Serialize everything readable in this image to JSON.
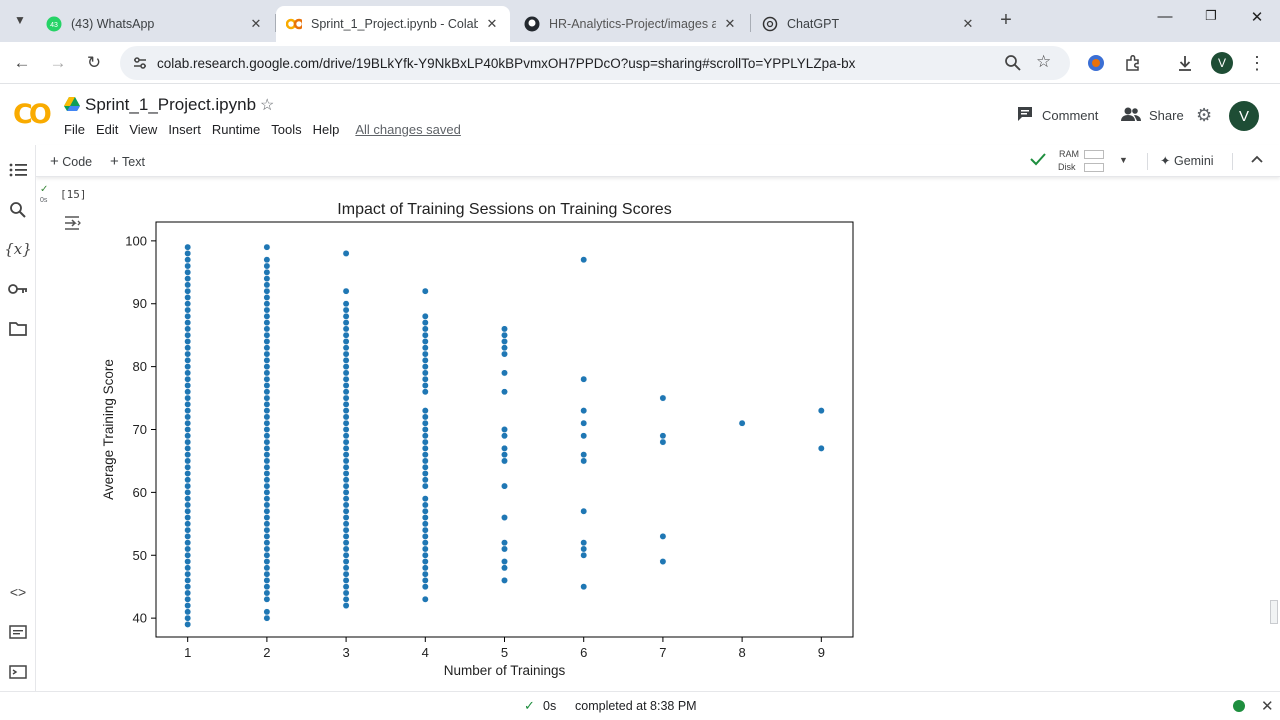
{
  "browser": {
    "tabs": [
      {
        "title": "(43) WhatsApp",
        "icon": "whatsapp-icon",
        "badge": "43",
        "active": false
      },
      {
        "title": "Sprint_1_Project.ipynb - Colab",
        "icon": "colab-icon",
        "active": true
      },
      {
        "title": "HR-Analytics-Project/images at",
        "icon": "github-icon",
        "active": false
      },
      {
        "title": "ChatGPT",
        "icon": "chatgpt-icon",
        "active": false
      }
    ],
    "url": "colab.research.google.com/drive/19BLkYfk-Y9NkBxLP40kBPvmxOH7PPDcO?usp=sharing#scrollTo=YPPLYLZpa-bx",
    "profile_initial": "V"
  },
  "colab": {
    "logo": "CO",
    "notebook_title": "Sprint_1_Project.ipynb",
    "menu": [
      "File",
      "Edit",
      "View",
      "Insert",
      "Runtime",
      "Tools",
      "Help"
    ],
    "save_status": "All changes saved",
    "comment_label": "Comment",
    "share_label": "Share",
    "user_initial": "V",
    "add_code": "Code",
    "add_text": "Text",
    "ram_label": "RAM",
    "disk_label": "Disk",
    "gemini_label": "Gemini"
  },
  "cell": {
    "exec_time": "0s",
    "exec_count": "[15]"
  },
  "status": {
    "time": "0s",
    "message": "completed at 8:38 PM"
  },
  "colors": {
    "marker": "#1f77b4",
    "status_dot": "#1e8e3e",
    "check": "#1e8e3e"
  },
  "chart_data": {
    "type": "scatter",
    "title": "Impact of Training Sessions on Training Scores",
    "xlabel": "Number of Trainings",
    "ylabel": "Average Training Score",
    "xlim": [
      0.6,
      9.4
    ],
    "ylim": [
      37,
      103
    ],
    "xticks": [
      1,
      2,
      3,
      4,
      5,
      6,
      7,
      8,
      9
    ],
    "yticks": [
      40,
      50,
      60,
      70,
      80,
      90,
      100
    ],
    "grid": false,
    "points_by_x": [
      {
        "x": 1,
        "y": [
          39,
          40,
          41,
          42,
          43,
          44,
          45,
          46,
          47,
          48,
          49,
          50,
          51,
          52,
          53,
          54,
          55,
          56,
          57,
          58,
          59,
          60,
          61,
          62,
          63,
          64,
          65,
          66,
          67,
          68,
          69,
          70,
          71,
          72,
          73,
          74,
          75,
          76,
          77,
          78,
          79,
          80,
          81,
          82,
          83,
          84,
          85,
          86,
          87,
          88,
          89,
          90,
          91,
          92,
          93,
          94,
          95,
          96,
          97,
          98,
          99
        ]
      },
      {
        "x": 2,
        "y": [
          40,
          41,
          43,
          44,
          45,
          46,
          47,
          48,
          49,
          50,
          51,
          52,
          53,
          54,
          55,
          56,
          57,
          58,
          59,
          60,
          61,
          62,
          63,
          64,
          65,
          66,
          67,
          68,
          69,
          70,
          71,
          72,
          73,
          74,
          75,
          76,
          77,
          78,
          79,
          80,
          81,
          82,
          83,
          84,
          85,
          86,
          87,
          88,
          89,
          90,
          91,
          92,
          93,
          94,
          95,
          96,
          97,
          99
        ]
      },
      {
        "x": 3,
        "y": [
          42,
          43,
          44,
          45,
          46,
          47,
          48,
          49,
          50,
          51,
          52,
          53,
          54,
          55,
          56,
          57,
          58,
          59,
          60,
          61,
          62,
          63,
          64,
          65,
          66,
          67,
          68,
          69,
          70,
          71,
          72,
          73,
          74,
          75,
          76,
          77,
          78,
          79,
          80,
          81,
          82,
          83,
          84,
          85,
          86,
          87,
          88,
          89,
          90,
          92,
          98
        ]
      },
      {
        "x": 4,
        "y": [
          43,
          45,
          46,
          47,
          48,
          49,
          50,
          51,
          52,
          53,
          54,
          55,
          56,
          57,
          58,
          59,
          61,
          62,
          63,
          64,
          65,
          66,
          67,
          68,
          69,
          70,
          71,
          72,
          73,
          76,
          77,
          78,
          79,
          80,
          81,
          82,
          83,
          84,
          85,
          86,
          87,
          88,
          92
        ]
      },
      {
        "x": 5,
        "y": [
          46,
          48,
          49,
          51,
          52,
          56,
          61,
          65,
          66,
          67,
          69,
          70,
          76,
          79,
          82,
          83,
          84,
          85,
          86
        ]
      },
      {
        "x": 6,
        "y": [
          45,
          50,
          51,
          52,
          57,
          65,
          66,
          69,
          71,
          73,
          78,
          97
        ]
      },
      {
        "x": 7,
        "y": [
          49,
          53,
          68,
          69,
          75
        ]
      },
      {
        "x": 8,
        "y": [
          71
        ]
      },
      {
        "x": 9,
        "y": [
          67,
          73
        ]
      }
    ]
  }
}
